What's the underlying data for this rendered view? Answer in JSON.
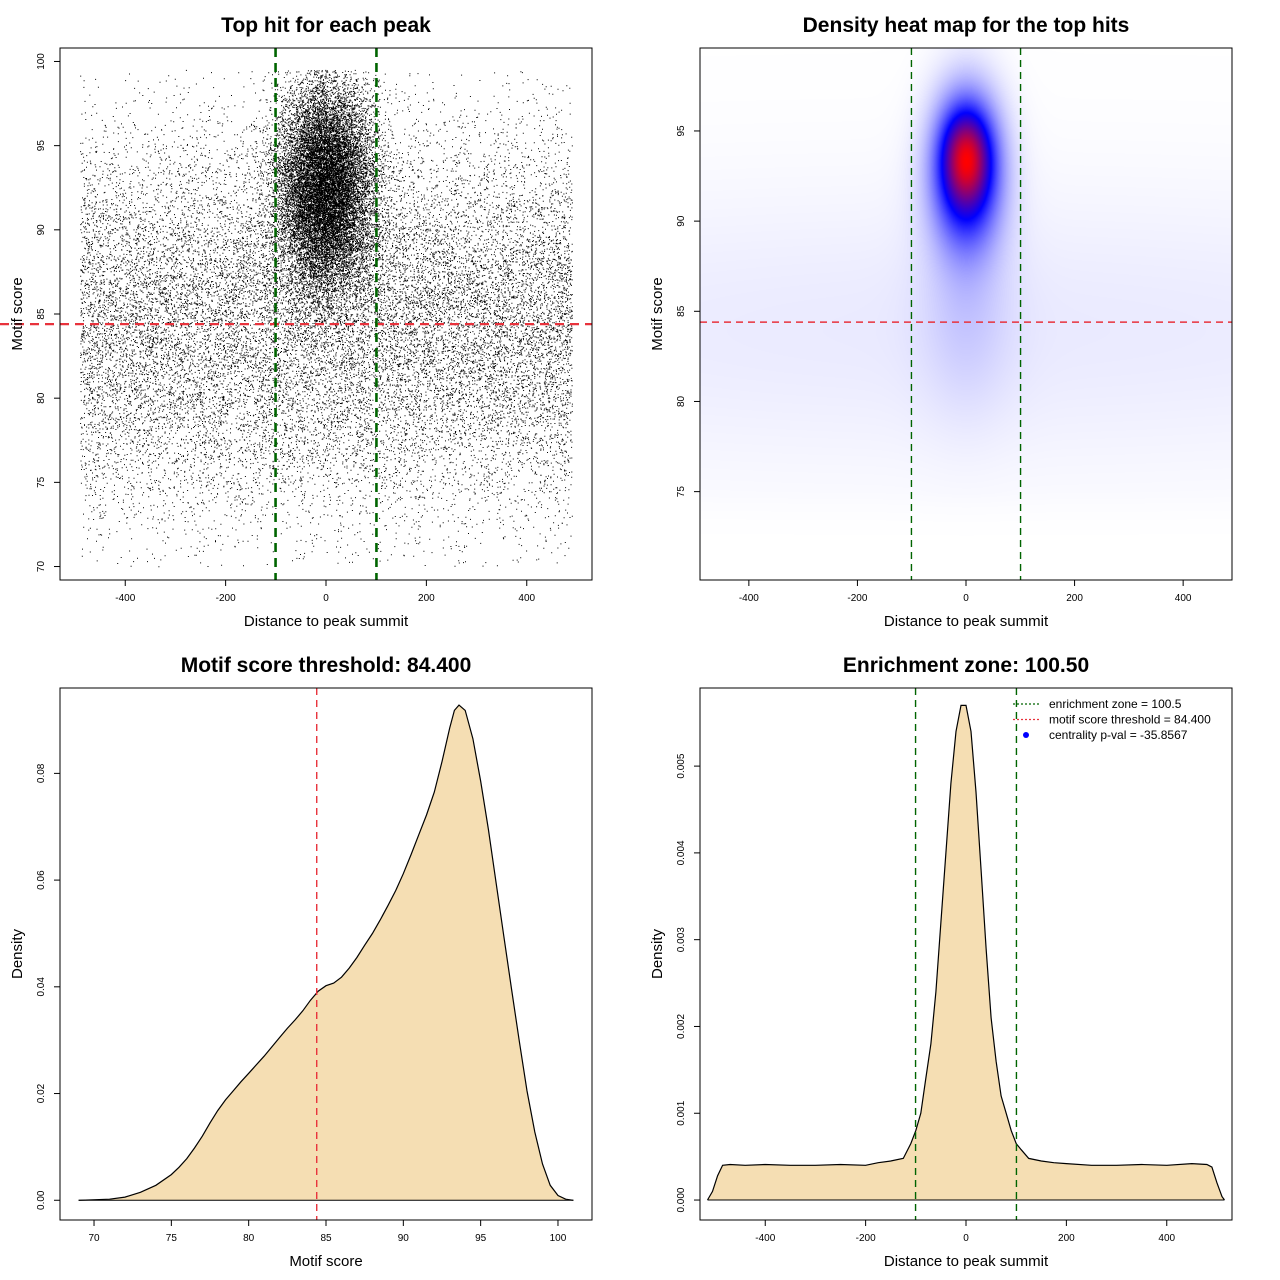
{
  "chart_data": [
    {
      "type": "scatter",
      "title": "Top hit for each peak",
      "xlabel": "Distance to peak summit",
      "ylabel": "Motif score",
      "xlim": [
        -530,
        530
      ],
      "ylim": [
        69.2,
        100.8
      ],
      "xticks": [
        -400,
        -200,
        0,
        200,
        400
      ],
      "yticks": [
        70,
        75,
        80,
        85,
        90,
        95,
        100
      ],
      "xtick_labels": [
        "-400",
        "-200",
        "0",
        "200",
        "400"
      ],
      "ytick_labels": [
        "70",
        "75",
        "80",
        "85",
        "90",
        "95",
        "100"
      ],
      "hlines": [
        {
          "y": 84.4,
          "color": "#e8323c",
          "style": "dashed"
        }
      ],
      "vlines": [
        {
          "x": -100.5,
          "color": "#006400",
          "style": "dashed"
        },
        {
          "x": 100.5,
          "color": "#006400",
          "style": "dashed"
        }
      ],
      "point_distribution": {
        "background": {
          "x_range": [
            -490,
            490
          ],
          "y_mean": 84.5,
          "y_sd": 5.8,
          "y_range": [
            70,
            99.5
          ],
          "count": 21000
        },
        "central_cluster": {
          "x_mean": 0,
          "x_sd": 48,
          "y_mean": 92.5,
          "y_sd": 3.1,
          "y_max": 99.5,
          "count": 17000
        },
        "point_color": "#000000"
      }
    },
    {
      "type": "heatmap",
      "title": "Density heat map for the top hits",
      "xlabel": "Distance to peak summit",
      "ylabel": "Motif score",
      "xlim": [
        -490,
        490
      ],
      "ylim": [
        70.1,
        99.6
      ],
      "xticks": [
        -400,
        -200,
        0,
        200,
        400
      ],
      "yticks": [
        75,
        80,
        85,
        90,
        95
      ],
      "xtick_labels": [
        "-400",
        "-200",
        "0",
        "200",
        "400"
      ],
      "ytick_labels": [
        "75",
        "80",
        "85",
        "90",
        "95"
      ],
      "hlines": [
        {
          "y": 84.4,
          "color": "#e8323c",
          "style": "dashed"
        }
      ],
      "vlines": [
        {
          "x": -100.5,
          "color": "#006400",
          "style": "dashed"
        },
        {
          "x": 100.5,
          "color": "#006400",
          "style": "dashed"
        }
      ],
      "colors": [
        "#ffffff",
        "#0000ff",
        "#ff0000"
      ],
      "density_peak": {
        "x": 0,
        "y": 93.5
      },
      "density_components": [
        {
          "x_mean": 0,
          "x_sd": 45,
          "y_mean": 93,
          "y_sd": 3,
          "weight": 1.0
        },
        {
          "x_mean": 0,
          "x_sd": 28,
          "y_mean": 93.6,
          "y_sd": 1.6,
          "weight": 0.55
        },
        {
          "x_mean": 0,
          "x_sd": 60,
          "y_mean": 85,
          "y_sd": 4,
          "weight": 0.12
        },
        {
          "x_mean": 0,
          "x_sd": 1200,
          "y_mean": 84,
          "y_sd": 6,
          "weight": 0.09
        }
      ]
    },
    {
      "type": "area",
      "title": "Motif score threshold: 84.400",
      "xlabel": "Motif score",
      "ylabel": "Density",
      "xlim": [
        67.8,
        102.2
      ],
      "ylim": [
        -0.0037,
        0.096
      ],
      "xticks": [
        70,
        75,
        80,
        85,
        90,
        95,
        100
      ],
      "yticks": [
        0,
        0.02,
        0.04,
        0.06,
        0.08
      ],
      "xtick_labels": [
        "70",
        "75",
        "80",
        "85",
        "90",
        "95",
        "100"
      ],
      "ytick_labels": [
        "0.00",
        "0.02",
        "0.04",
        "0.06",
        "0.08"
      ],
      "fill": "#f5deb3",
      "vlines": [
        {
          "x": 84.4,
          "color": "#e8323c",
          "style": "dashed"
        }
      ],
      "x": [
        69,
        71,
        72,
        73,
        74,
        75,
        75.5,
        76,
        76.5,
        77,
        77.5,
        78,
        78.5,
        79,
        79.5,
        80,
        81,
        82,
        82.5,
        83,
        83.5,
        84,
        84.5,
        85,
        85.5,
        86,
        86.5,
        87,
        87.5,
        88,
        88.5,
        89,
        89.5,
        90,
        90.5,
        91,
        91.5,
        92,
        92.5,
        93,
        93.3,
        93.6,
        94,
        94.5,
        95,
        95.5,
        96,
        96.5,
        97,
        97.5,
        98,
        98.5,
        99,
        99.5,
        100,
        100.5,
        101
      ],
      "y": [
        0,
        0.0002,
        0.0006,
        0.0015,
        0.0028,
        0.0048,
        0.0062,
        0.0078,
        0.0098,
        0.012,
        0.0145,
        0.0168,
        0.0188,
        0.0205,
        0.0222,
        0.0238,
        0.027,
        0.0305,
        0.0322,
        0.0338,
        0.0355,
        0.0375,
        0.0392,
        0.0402,
        0.0407,
        0.0418,
        0.0435,
        0.0455,
        0.0478,
        0.05,
        0.0525,
        0.0552,
        0.058,
        0.0612,
        0.0648,
        0.0685,
        0.0722,
        0.0765,
        0.0822,
        0.0885,
        0.0918,
        0.0928,
        0.0918,
        0.0865,
        0.0785,
        0.0695,
        0.0595,
        0.0495,
        0.0395,
        0.0298,
        0.0205,
        0.0128,
        0.0068,
        0.0028,
        0.0009,
        0.0002,
        0
      ]
    },
    {
      "type": "area",
      "title": "Enrichment zone: 100.50",
      "xlabel": "Distance to peak summit",
      "ylabel": "Density",
      "xlim": [
        -530,
        530
      ],
      "ylim": [
        -0.00023,
        0.0059
      ],
      "xticks": [
        -400,
        -200,
        0,
        200,
        400
      ],
      "yticks": [
        0,
        0.001,
        0.002,
        0.003,
        0.004,
        0.005
      ],
      "xtick_labels": [
        "-400",
        "-200",
        "0",
        "200",
        "400"
      ],
      "ytick_labels": [
        "0.000",
        "0.001",
        "0.002",
        "0.003",
        "0.004",
        "0.005"
      ],
      "fill": "#f5deb3",
      "vlines": [
        {
          "x": -100.5,
          "color": "#006400",
          "style": "dashed"
        },
        {
          "x": 100.5,
          "color": "#006400",
          "style": "dashed"
        }
      ],
      "x": [
        -515,
        -505,
        -495,
        -485,
        -470,
        -440,
        -400,
        -350,
        -300,
        -250,
        -200,
        -175,
        -150,
        -125,
        -110,
        -100,
        -90,
        -80,
        -70,
        -60,
        -50,
        -40,
        -30,
        -20,
        -10,
        0,
        10,
        20,
        30,
        40,
        50,
        60,
        70,
        80,
        90,
        100,
        110,
        125,
        150,
        175,
        200,
        250,
        300,
        350,
        400,
        450,
        480,
        490,
        500,
        510,
        515
      ],
      "y": [
        0,
        0.0001,
        0.00028,
        0.0004,
        0.00041,
        0.0004,
        0.00041,
        0.0004,
        0.0004,
        0.00041,
        0.0004,
        0.00043,
        0.00045,
        0.00048,
        0.00065,
        0.0008,
        0.001,
        0.0014,
        0.0018,
        0.0024,
        0.0032,
        0.004,
        0.0048,
        0.0054,
        0.0057,
        0.0057,
        0.0054,
        0.0047,
        0.0038,
        0.0029,
        0.0021,
        0.0016,
        0.0012,
        0.001,
        0.0008,
        0.00065,
        0.00058,
        0.00048,
        0.00045,
        0.00043,
        0.00042,
        0.0004,
        0.0004,
        0.00041,
        0.0004,
        0.00042,
        0.00041,
        0.00038,
        0.0002,
        4e-05,
        0
      ],
      "legend": {
        "placement": "top-right",
        "entries": [
          {
            "label": "enrichment zone = 100.5",
            "color": "#006400",
            "style": "dotted"
          },
          {
            "label": "motif score threshold = 84.400",
            "color": "#e8323c",
            "style": "dotted"
          },
          {
            "label": "centrality p-val = -35.8567",
            "color": "#0000ff",
            "style": "point"
          }
        ]
      }
    }
  ]
}
